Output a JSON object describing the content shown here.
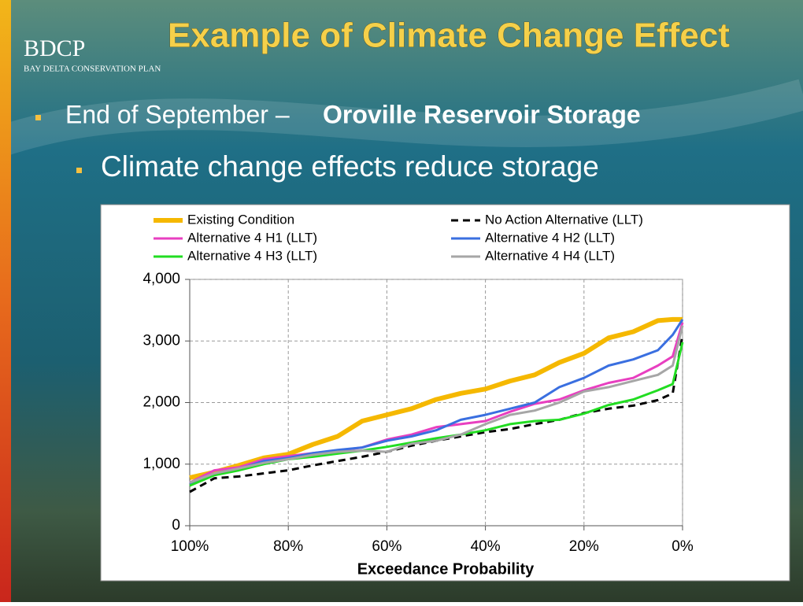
{
  "slide": {
    "logo": "BDCP",
    "logo_subtitle": "Bay Delta Conservation Plan",
    "title": "Example of Climate Change Effect",
    "bullet_1_lead": "End of September –",
    "bullet_1_bold": "Oroville Reservoir Storage",
    "bullet_2": "Climate change effects reduce storage"
  },
  "chart_data": {
    "type": "line",
    "x_label": "Exceedance Probability",
    "grid": true,
    "xlim": [
      100,
      0
    ],
    "xticks": [
      {
        "value": 100,
        "label": "100%"
      },
      {
        "value": 80,
        "label": "80%"
      },
      {
        "value": 60,
        "label": "60%"
      },
      {
        "value": 40,
        "label": "40%"
      },
      {
        "value": 20,
        "label": "20%"
      },
      {
        "value": 0,
        "label": "0%"
      }
    ],
    "ylim": [
      0,
      4000
    ],
    "yticks": [
      0,
      {
        "value": 1000,
        "label": "1,000"
      },
      {
        "value": 2000,
        "label": "2,000"
      },
      {
        "value": 3000,
        "label": "3,000"
      },
      {
        "value": 4000,
        "label": "4,000"
      }
    ],
    "x": [
      100,
      95,
      90,
      85,
      80,
      75,
      70,
      65,
      60,
      55,
      50,
      45,
      40,
      35,
      30,
      25,
      20,
      15,
      10,
      5,
      2,
      0
    ],
    "series": [
      {
        "name": "Existing Condition",
        "color": "#f5b800",
        "values": [
          780,
          870,
          980,
          1100,
          1160,
          1320,
          1450,
          1700,
          1800,
          1900,
          2050,
          2150,
          2220,
          2350,
          2450,
          2650,
          2800,
          3050,
          3150,
          3330,
          3350,
          3350
        ]
      },
      {
        "name": "No Action Alternative (LLT)",
        "color": "#000000",
        "style": "dashed",
        "values": [
          550,
          770,
          800,
          850,
          900,
          980,
          1050,
          1120,
          1200,
          1300,
          1380,
          1450,
          1520,
          1570,
          1650,
          1720,
          1830,
          1900,
          1950,
          2040,
          2150,
          3100
        ]
      },
      {
        "name": "Alternative 4 H1 (LLT)",
        "color": "#e83fc0",
        "values": [
          700,
          900,
          950,
          1080,
          1130,
          1180,
          1220,
          1270,
          1400,
          1480,
          1600,
          1650,
          1700,
          1850,
          1980,
          2050,
          2200,
          2320,
          2400,
          2600,
          2750,
          3300
        ]
      },
      {
        "name": "Alternative 4 H2 (LLT)",
        "color": "#3a6fe0",
        "values": [
          680,
          830,
          920,
          1050,
          1100,
          1180,
          1230,
          1270,
          1380,
          1450,
          1550,
          1720,
          1800,
          1900,
          2000,
          2250,
          2400,
          2600,
          2700,
          2850,
          3100,
          3350
        ]
      },
      {
        "name": "Alternative 4 H3 (LLT)",
        "color": "#22dd22",
        "values": [
          650,
          820,
          900,
          1000,
          1080,
          1120,
          1170,
          1220,
          1280,
          1350,
          1420,
          1480,
          1550,
          1650,
          1700,
          1720,
          1820,
          1960,
          2050,
          2200,
          2300,
          2980
        ]
      },
      {
        "name": "Alternative 4 H4 (LLT)",
        "color": "#a6a6a6",
        "values": [
          700,
          850,
          930,
          1020,
          1080,
          1150,
          1200,
          1220,
          1200,
          1330,
          1380,
          1480,
          1650,
          1800,
          1870,
          2000,
          2180,
          2250,
          2350,
          2450,
          2600,
          3250
        ]
      }
    ]
  }
}
